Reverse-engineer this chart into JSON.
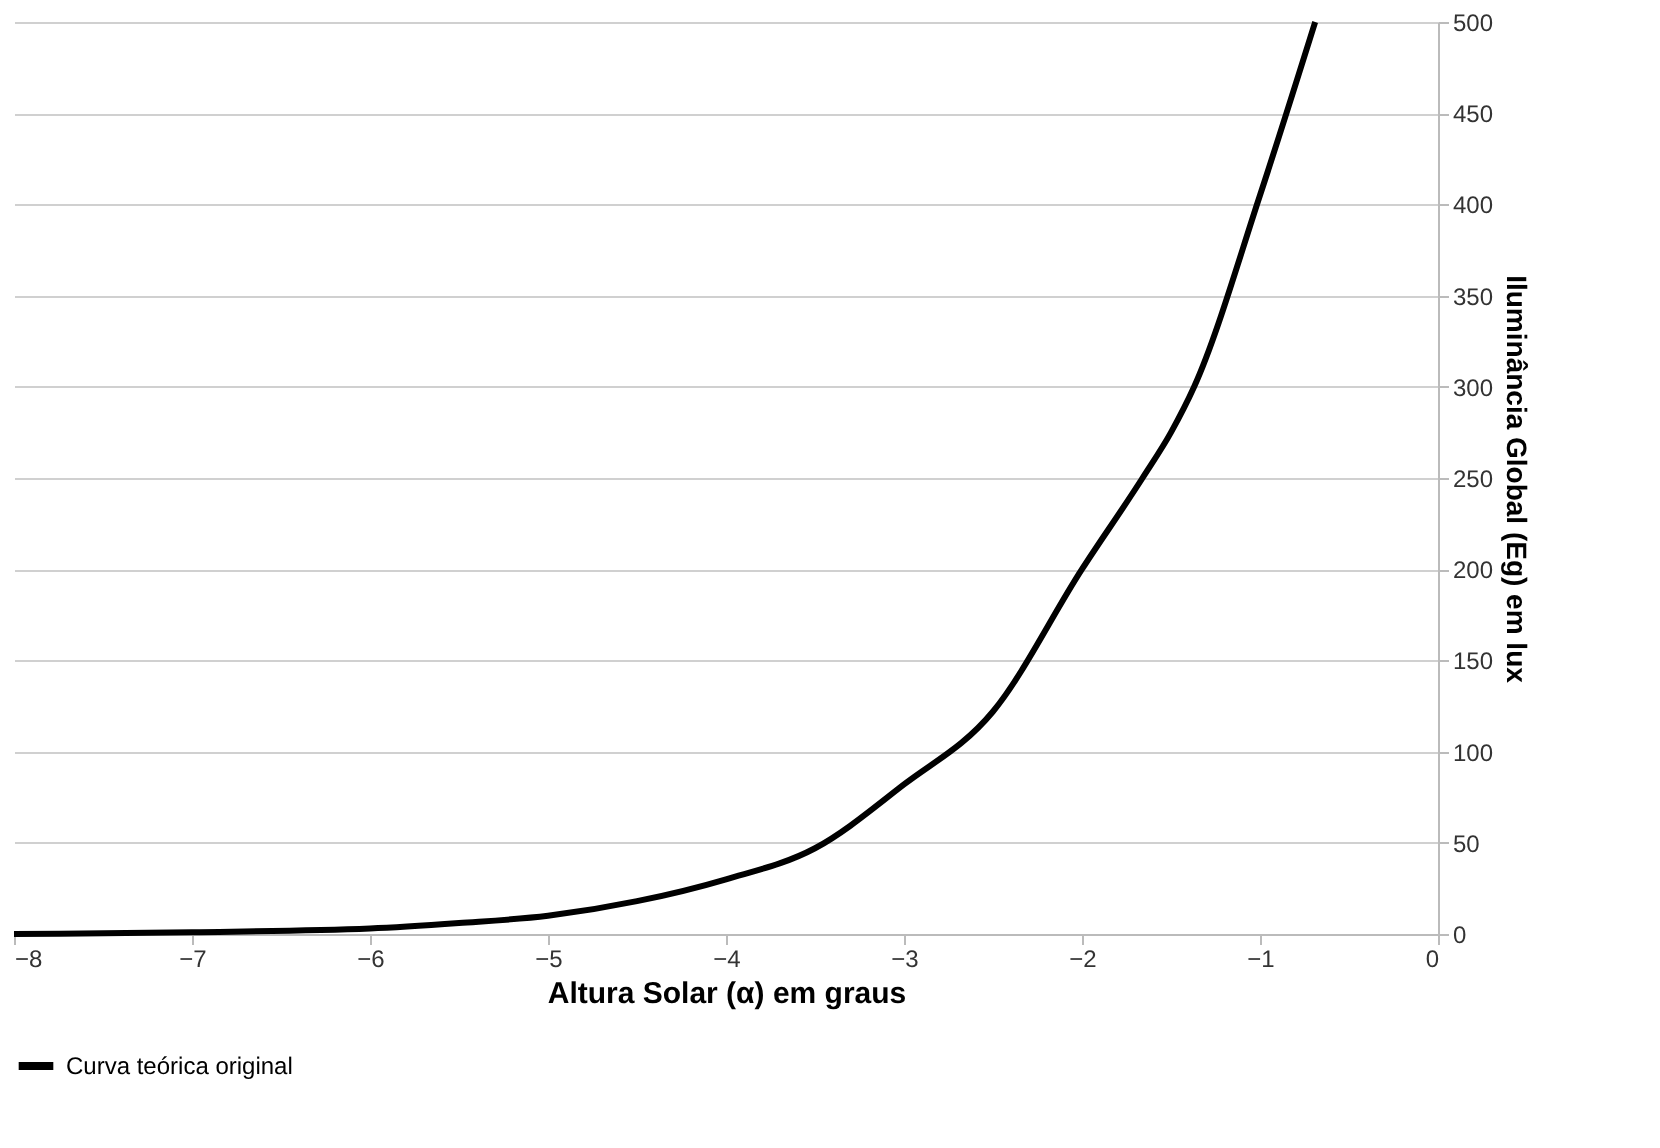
{
  "chart_data": {
    "type": "line",
    "xlabel": "Altura Solar (α) em graus",
    "ylabel": "Iluminância Global (Eg) em lux",
    "x": [
      -8,
      -7,
      -6,
      -5.5,
      -5,
      -4.5,
      -4,
      -3.5,
      -3,
      -2.5,
      -2,
      -1.66,
      -1.5,
      -1.37,
      -1,
      -0.69
    ],
    "series": [
      {
        "name": "Curva teórica original",
        "color": "#000000",
        "values": [
          0,
          1,
          3,
          6,
          10,
          18,
          30,
          47,
          82,
          122,
          200,
          250,
          275,
          300,
          405,
          500
        ]
      }
    ],
    "xlim": [
      -8,
      0
    ],
    "xticks": [
      -8,
      -7,
      -6,
      -5,
      -4,
      -3,
      -2,
      -1,
      0
    ],
    "ylim": [
      0,
      500
    ],
    "yticks": [
      0,
      50,
      100,
      150,
      200,
      250,
      300,
      350,
      400,
      450,
      500
    ],
    "grid": "y",
    "legend": "bottom",
    "marker": "none",
    "line_style": "solid"
  }
}
